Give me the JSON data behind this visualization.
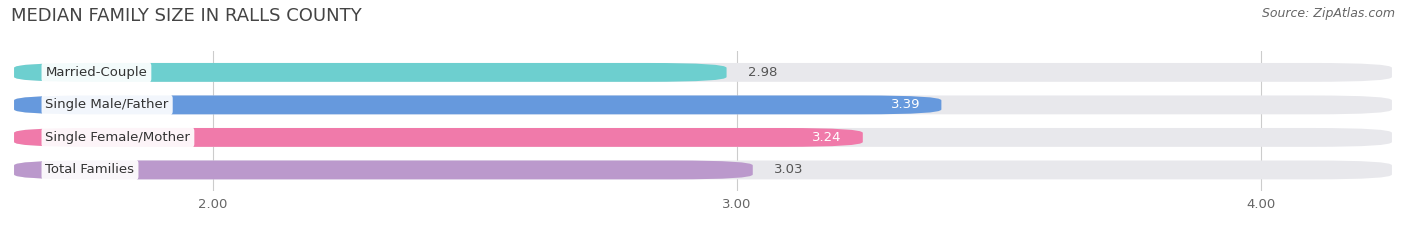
{
  "title": "MEDIAN FAMILY SIZE IN RALLS COUNTY",
  "source": "Source: ZipAtlas.com",
  "categories": [
    "Married-Couple",
    "Single Male/Father",
    "Single Female/Mother",
    "Total Families"
  ],
  "values": [
    2.98,
    3.39,
    3.24,
    3.03
  ],
  "bar_colors": [
    "#6dcfcf",
    "#6699dd",
    "#f07aaa",
    "#bb99cc"
  ],
  "value_inside": [
    false,
    true,
    true,
    false
  ],
  "xlim_left": 1.62,
  "xlim_right": 4.25,
  "xticks": [
    2.0,
    3.0,
    4.0
  ],
  "xtick_labels": [
    "2.00",
    "3.00",
    "4.00"
  ],
  "title_fontsize": 13,
  "source_fontsize": 9,
  "label_fontsize": 9.5,
  "value_fontsize": 9.5,
  "tick_fontsize": 9.5,
  "background_color": "#ffffff",
  "bar_background_color": "#e8e8ec",
  "bar_height": 0.58
}
